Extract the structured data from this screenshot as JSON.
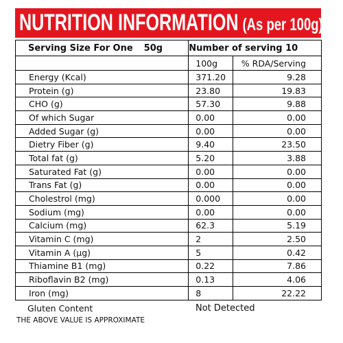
{
  "header": {
    "title": "NUTRITION INFORMATION",
    "subtitle": "(As per 100g)"
  },
  "serving": {
    "label": "Serving Size For One",
    "size": "50g",
    "count": "Number of serving 10"
  },
  "table": {
    "columns": [
      "100g",
      "% RDA/Serving"
    ],
    "rows": [
      [
        "Energy (Kcal)",
        "371.20",
        "9.28"
      ],
      [
        "Protein (g)",
        "23.80",
        "19.83"
      ],
      [
        "CHO (g)",
        "57.30",
        "9.88"
      ],
      [
        "Of which Sugar",
        "0.00",
        "0.00"
      ],
      [
        "Added Sugar (g)",
        "0.00",
        "0.00"
      ],
      [
        "Dietry Fiber (g)",
        "9.40",
        "23.50"
      ],
      [
        "Total fat (g)",
        "5.20",
        "3.88"
      ],
      [
        "Saturated Fat (g)",
        "0.00",
        "0.00"
      ],
      [
        "Trans Fat (g)",
        "0.00",
        "0.00"
      ],
      [
        "Cholestrol (mg)",
        "0.000",
        "0.00"
      ],
      [
        "Sodium (mg)",
        "0.00",
        "0.00"
      ],
      [
        "Calcium (mg)",
        "62.3",
        "5.19"
      ],
      [
        "Vitamin C (mg)",
        "2",
        "2.50"
      ],
      [
        "Vitamin A (µg)",
        "5",
        "0.42"
      ],
      [
        "Thiamine B1 (mg)",
        "0.22",
        "7.86"
      ],
      [
        "Riboflavin B2 (mg)",
        "0.13",
        "4.06"
      ],
      [
        "Iron (mg)",
        "8",
        "22.22"
      ]
    ]
  },
  "footer": {
    "gluten_label": "Gluten Content",
    "gluten_value": "Not Detected",
    "note": "THE ABOVE VALUE IS APPROXIMATE"
  }
}
